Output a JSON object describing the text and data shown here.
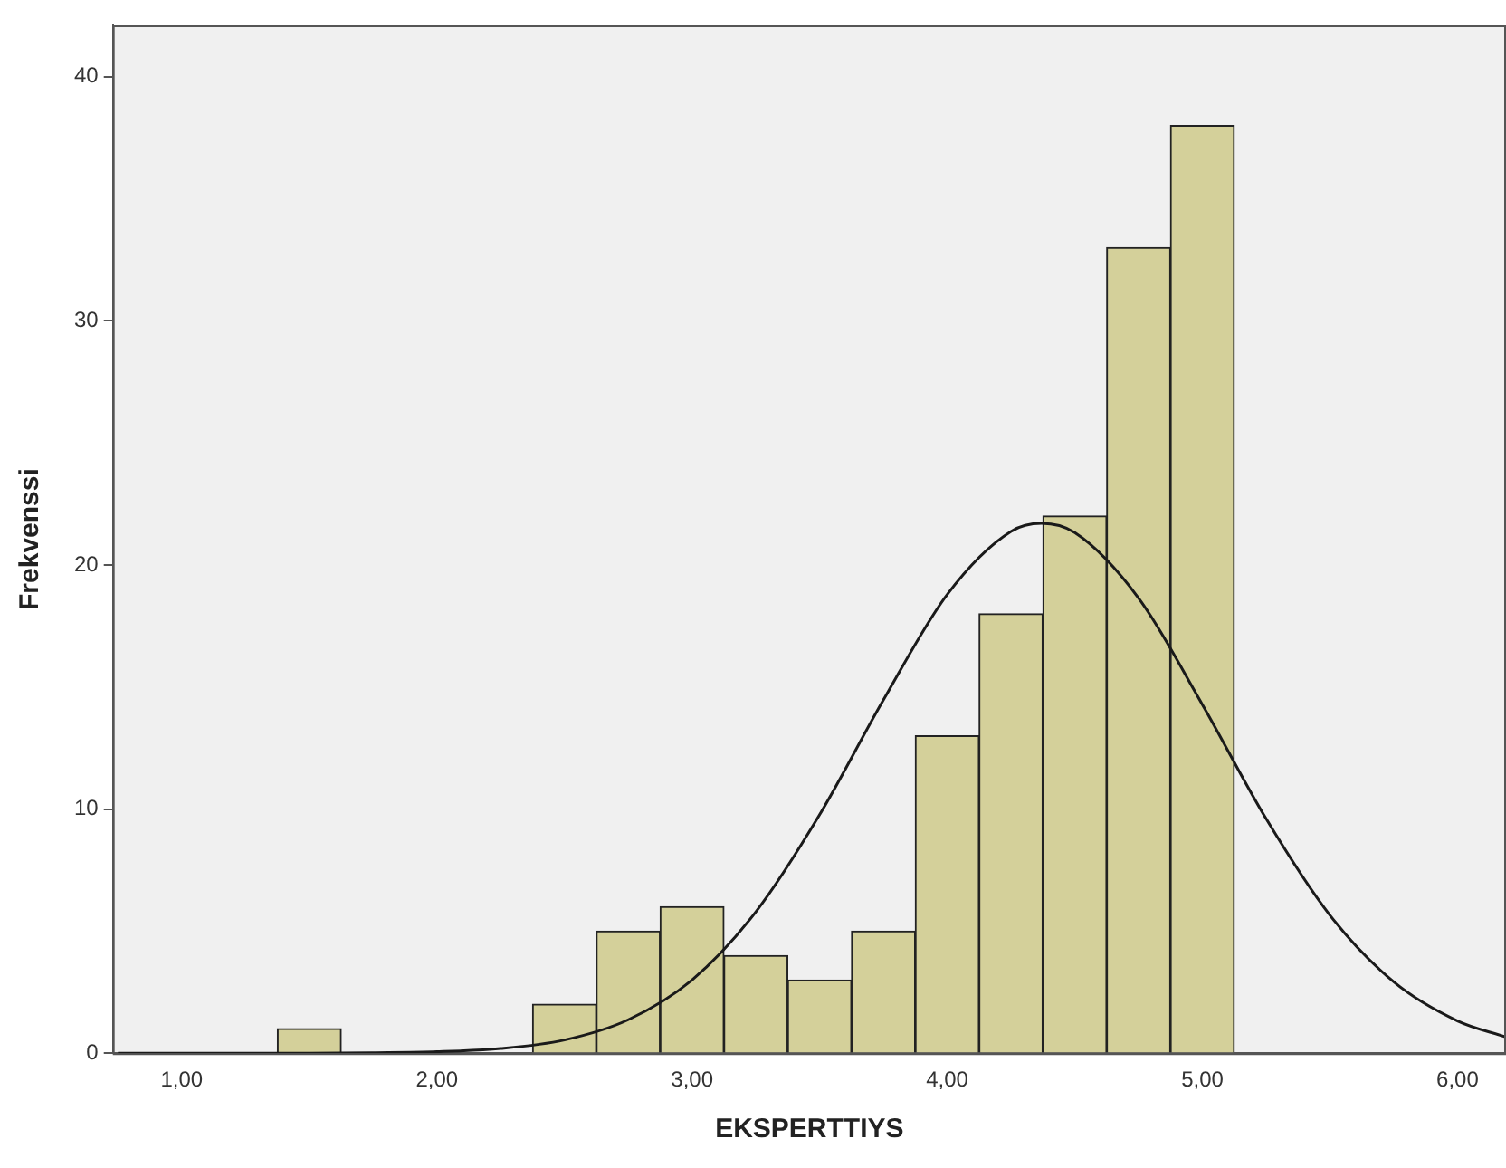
{
  "chart_data": {
    "type": "histogram",
    "xlabel": "EKSPERTTIYS",
    "ylabel": "Frekvenssi",
    "bins": [
      1.375,
      1.625,
      1.875,
      2.125,
      2.375,
      2.625,
      2.875,
      3.125,
      3.375,
      3.625,
      3.875,
      4.125,
      4.375,
      4.625,
      4.875,
      5.125
    ],
    "values": [
      1,
      0,
      0,
      0,
      2,
      5,
      6,
      4,
      3,
      5,
      13,
      18,
      22,
      33,
      38
    ],
    "color": "#d4d09a",
    "series": [
      {
        "type": "line",
        "color": "#1a1a1a",
        "x": [
          0.75,
          1.5,
          1.75,
          2.0,
          2.25,
          2.5,
          2.75,
          3.0,
          3.25,
          3.5,
          3.75,
          4.0,
          4.25,
          4.37,
          4.5,
          4.75,
          5.0,
          5.25,
          5.5,
          5.75,
          6.0,
          6.19
        ],
        "values": [
          0,
          0,
          0.02,
          0.06,
          0.19,
          0.54,
          1.37,
          3.0,
          5.79,
          9.77,
          14.47,
          18.79,
          21.37,
          21.7,
          21.32,
          18.64,
          14.28,
          9.6,
          5.65,
          2.92,
          1.32,
          0.66
        ]
      }
    ],
    "xlim": [
      0.73,
      6.19
    ],
    "xticks": [
      {
        "value": 1,
        "label": "1,00"
      },
      {
        "value": 2,
        "label": "2,00"
      },
      {
        "value": 3,
        "label": "3,00"
      },
      {
        "value": 4,
        "label": "4,00"
      },
      {
        "value": 5,
        "label": "5,00"
      },
      {
        "value": 6,
        "label": "6,00"
      }
    ],
    "ylim": [
      0,
      42.1
    ],
    "yticks": [
      0,
      10,
      20,
      30,
      40
    ],
    "grid": false,
    "legend": false,
    "marker": "none",
    "line_style": "solid"
  }
}
